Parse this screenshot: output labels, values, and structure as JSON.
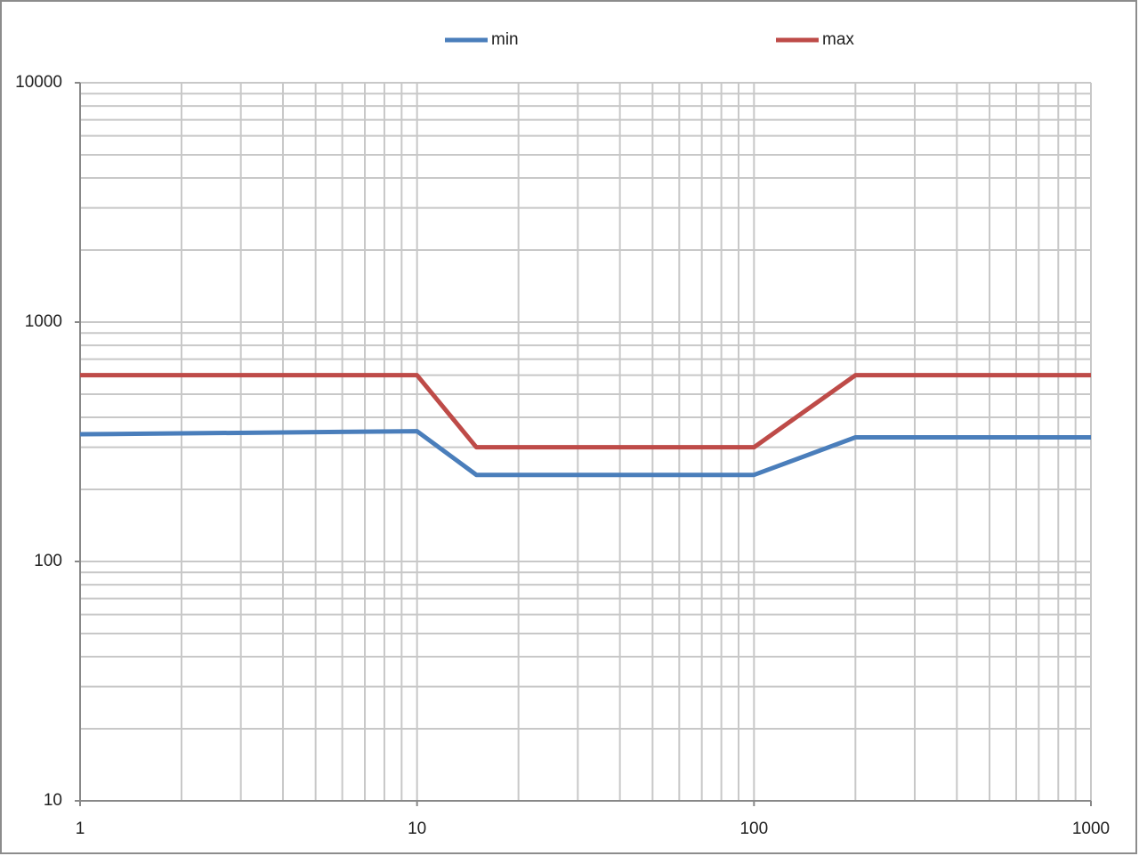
{
  "chart_data": {
    "type": "line",
    "x": [
      1,
      10,
      15,
      100,
      200,
      1000
    ],
    "series": [
      {
        "name": "min",
        "color": "#4a7ebb",
        "values": [
          340,
          350,
          230,
          230,
          330,
          330
        ]
      },
      {
        "name": "max",
        "color": "#be4b48",
        "values": [
          600,
          600,
          300,
          300,
          600,
          600
        ]
      }
    ],
    "xlim": [
      1,
      1000
    ],
    "ylim": [
      10,
      10000
    ],
    "xticks": [
      1,
      10,
      100,
      1000
    ],
    "yticks": [
      10,
      100,
      1000,
      10000
    ],
    "xscale": "log",
    "yscale": "log",
    "grid": true,
    "minor_grid": true,
    "legend": "top"
  }
}
